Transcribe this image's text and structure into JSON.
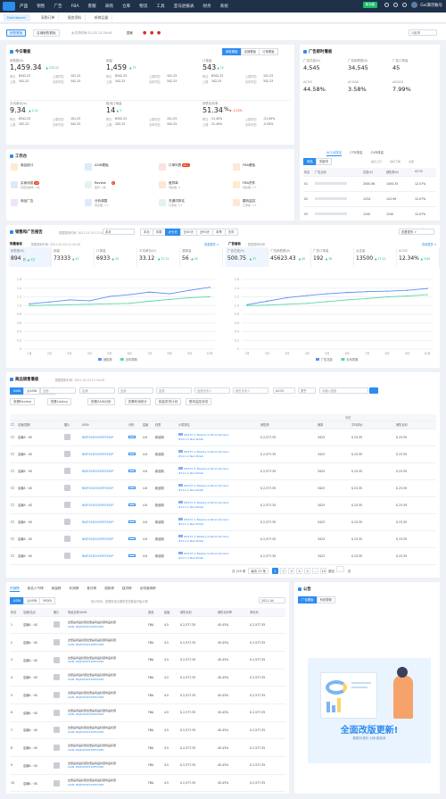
{
  "topnav": {
    "items": [
      "产品",
      "销售",
      "广告",
      "FBA",
      "客服",
      "采购",
      "仓库",
      "物流",
      "工具",
      "亚马逊报表",
      "财务",
      "系统"
    ],
    "trial": "新功能",
    "user": "Gvi演示账号"
  },
  "tabs": [
    "Dashboard",
    "采购订单",
    "服务资料",
    "新商品量"
  ],
  "filters": {
    "btn1": "销售看板",
    "btn2": "店铺销售看板",
    "tz": "太平洋时间 01-03 12:34:45",
    "country": "国家",
    "mode": "人民币"
  },
  "today": {
    "title": "今日看板",
    "switch": [
      "销售看板",
      "店铺看板",
      "订单看板"
    ],
    "kpis": [
      {
        "label": "销售额(¥)",
        "value": "1,459.34",
        "chg": "▲ 133.12",
        "rows": [
          [
            "昨日",
            "8342.23",
            "上周同日",
            "101.23"
          ],
          [
            "上周",
            "342.23",
            "去年同日",
            "342.23"
          ]
        ]
      },
      {
        "label": "销量",
        "value": "1,459",
        "chg": "▲ 73",
        "rows": [
          [
            "昨日",
            "8342.23",
            "上周同日",
            "101.23"
          ],
          [
            "上周",
            "342.23",
            "去年同日",
            "342.23"
          ]
        ]
      },
      {
        "label": "订单量",
        "value": "543",
        "chg": "▲ 12",
        "rows": [
          [
            "昨日",
            "8342.23",
            "上周同日",
            "101.23"
          ],
          [
            "上周",
            "342.23",
            "去年同日",
            "342.23"
          ]
        ]
      },
      {
        "label": "平均单价(¥)",
        "value": "9.34",
        "chg": "▲ 2.12",
        "rows": [
          [
            "昨日",
            "8342.23",
            "上周同日",
            "101.23"
          ],
          [
            "上周",
            "342.23",
            "去年同日",
            "342.23"
          ]
        ]
      },
      {
        "label": "取消订单量",
        "value": "14",
        "chg": "▲ 3",
        "rows": [
          [
            "昨日",
            "8342.23",
            "上周同日",
            "101.23"
          ],
          [
            "上周",
            "342.23",
            "去年同日",
            "342.23"
          ]
        ]
      },
      {
        "label": "销售毛利率",
        "value": "51.34",
        "unit": "%",
        "chg": "▼ -2.23%",
        "rows": [
          [
            "昨日",
            "21.45%",
            "上周同日",
            "-21.45%"
          ],
          [
            "上周",
            "21.45%",
            "去年同日",
            "-0.34%"
          ]
        ]
      }
    ]
  },
  "ads": {
    "title": "广告即时看板",
    "kpis": [
      {
        "label": "广告花费(¥)",
        "value": "4,545"
      },
      {
        "label": "广告销售额(¥)",
        "value": "34,545"
      },
      {
        "label": "广告订单量",
        "value": "45"
      },
      {
        "label": "ACOS",
        "value": "44.58%"
      },
      {
        "label": "ACOAS",
        "value": "3.58%"
      },
      {
        "label": "ASOAS",
        "value": "7.99%"
      }
    ],
    "ranktabs": [
      "ACOS排名",
      "CTR排名",
      "CVR排名"
    ],
    "sub": [
      "商品",
      "关键词"
    ],
    "chips": [
      "指标上升",
      "指标下降",
      "全部"
    ],
    "head": [
      "排名",
      "广告活动",
      "花费(¥)",
      "销售额(¥)",
      "ACOS"
    ],
    "rows": [
      [
        "01",
        "2000.56",
        "1000.33",
        "12.07%"
      ],
      [
        "02",
        "1234",
        "123.99",
        "12.07%"
      ],
      [
        "03",
        "1240",
        "1240",
        "12.07%"
      ],
      [
        "04",
        "1240",
        "1240",
        "12.07%"
      ],
      [
        "05",
        "34",
        "34",
        "12.07%"
      ]
    ],
    "pager": [
      "共 20 条",
      "1",
      "2",
      "3",
      "4",
      "5"
    ]
  },
  "tools": {
    "title": "工作台",
    "items": [
      {
        "name": "商品统计",
        "sub": "",
        "color": "#fdebd0",
        "badge": ""
      },
      {
        "name": "ASIN看板",
        "sub": "",
        "color": "#d6ecfb",
        "badge": ""
      },
      {
        "name": "订单列表",
        "sub": "",
        "color": "#fde2e2",
        "badge": "99+"
      },
      {
        "name": "FBA看板",
        "sub": "",
        "color": "#fde7d6",
        "badge": ""
      },
      {
        "name": "买家消息",
        "sub": "待回复邮件: 1条",
        "color": "#dde9fb",
        "badge": "13"
      },
      {
        "name": "Review",
        "sub": "差评: 1条",
        "color": "#e4f3e9",
        "badge": "5"
      },
      {
        "name": "差异单",
        "sub": "待处理: 0",
        "color": "#fde7d6",
        "badge": ""
      },
      {
        "name": "FBA货件",
        "sub": "待处理: 1个",
        "color": "#fdebd0",
        "badge": ""
      },
      {
        "name": "商品广告",
        "sub": "",
        "color": "#ece4fb",
        "badge": ""
      },
      {
        "name": "分析调整",
        "sub": "待办理: 1个",
        "color": "#dde9fb",
        "badge": ""
      },
      {
        "name": "关键词排名",
        "sub": "已添加: 1个",
        "color": "#e4f3e9",
        "badge": ""
      },
      {
        "name": "翻页监控",
        "sub": "已添加: 1个",
        "color": "#fde7d6",
        "badge": ""
      }
    ]
  },
  "trend": {
    "title": "销售和广告报告",
    "updated": "数据更新时间: 2021-01-03 12:34:45",
    "ranges": [
      "本月",
      "本周",
      "近七天",
      "近30天",
      "近90天",
      "本季",
      "去年",
      "自定义"
    ],
    "subtabs": [
      "近七天",
      "近7天",
      "近30天",
      "本周",
      "本月",
      "自定义"
    ],
    "salesTitle": "销量看板",
    "adsTitle": "广告看板",
    "updSales": "数据更新时间",
    "updAds": "数据更新时间",
    "more": "查看更多 >",
    "sales": [
      {
        "label": "销售额(¥)",
        "value": "894",
        "unit": "万",
        "chg": "▲ 3万"
      },
      {
        "label": "销量",
        "value": "73333",
        "chg": "▲ 45"
      },
      {
        "label": "订单量",
        "value": "6933",
        "chg": "▲ 34"
      },
      {
        "label": "平均单价(¥)",
        "value": "33.12",
        "chg": "▲ 37.12"
      },
      {
        "label": "退款量",
        "value": "56",
        "chg": "▲ 45"
      }
    ],
    "adk": [
      {
        "label": "广告花费(¥)",
        "value": "500.75",
        "chg": "▲ 37"
      },
      {
        "label": "广告销售额(¥)",
        "value": "45623.43",
        "chg": "▲ 40"
      },
      {
        "label": "广告订单量",
        "value": "192",
        "chg": "▲ 36"
      },
      {
        "label": "点击量",
        "value": "13500",
        "chg": "▲ 27.12"
      },
      {
        "label": "ACOS",
        "value": "12.34%",
        "chg": "▲ 3.64"
      }
    ]
  },
  "chart_data": [
    {
      "type": "line",
      "categories": [
        "1月",
        "2月",
        "3月",
        "4月",
        "5月",
        "6月",
        "7月",
        "8月",
        "9月",
        "10月"
      ],
      "ylim": [
        0,
        1.6
      ],
      "yticks": [
        "1.6",
        "1.4",
        "1.2",
        "1.0",
        "0.8",
        "0.6",
        "0.4",
        "0.2",
        "0"
      ],
      "series": [
        {
          "name": "销售额",
          "color": "#5b8ff9",
          "values": [
            1.04,
            1.08,
            1.13,
            1.11,
            1.21,
            1.25,
            1.31,
            1.27,
            1.35,
            1.42
          ]
        },
        {
          "name": "去年同期",
          "color": "#5ad8a6",
          "values": [
            1.0,
            1.01,
            1.02,
            1.03,
            1.04,
            1.05,
            1.1,
            1.14,
            1.18,
            1.2
          ]
        }
      ]
    },
    {
      "type": "line",
      "categories": [
        "1月",
        "2月",
        "3月",
        "4月",
        "5月",
        "6月",
        "7月",
        "8月",
        "9月",
        "10月"
      ],
      "ylim": [
        0,
        1.6
      ],
      "yticks": [
        "1.6",
        "1.4",
        "1.2",
        "1.0",
        "0.8",
        "0.6",
        "0.4",
        "0.2",
        "0"
      ],
      "series": [
        {
          "name": "广告花费",
          "color": "#5b8ff9",
          "values": [
            1.02,
            1.1,
            1.18,
            1.23,
            1.27,
            1.3,
            1.32,
            1.33,
            1.35,
            1.39
          ]
        },
        {
          "name": "去年同期",
          "color": "#5ad8a6",
          "values": [
            1.0,
            1.01,
            1.03,
            1.05,
            1.09,
            1.13,
            1.16,
            1.2,
            1.22,
            1.25
          ]
        }
      ]
    }
  ],
  "products": {
    "title": "商品销售看板",
    "updated": "数据更新时间: 2021-01-03 12:34:45",
    "seg": [
      "ASIN",
      "父ASIN",
      "MSKU"
    ],
    "filters": [
      "全部",
      "店铺",
      "全部",
      "品类",
      "运营负责人",
      "销售负责人",
      "ACOS",
      "关于",
      "请输入搜索"
    ],
    "btns": [
      "查看Review",
      "查看Listing",
      "查看ASIN分析",
      "查看利润统计",
      "批量发货计划",
      "更改监控状态"
    ],
    "head": [
      "店铺/国家",
      "图片",
      "ASIN",
      "分析",
      "星级",
      "标签",
      "小类排名",
      "销售额",
      "销量",
      "平均单价",
      "销售毛利"
    ],
    "group": "今日",
    "rows": [
      [
        "店铺A · US",
        "B0JP34305305P5305P",
        "4.6",
        "新品期",
        "#4472 in Beauty & Personal Care",
        "$ 2,577.35",
        "3423",
        "$ 23.35",
        "$ 23.35"
      ],
      [
        "店铺A · US",
        "B0JP34305305P5305P",
        "4.6",
        "新品期",
        "#4472 in Beauty & Personal Care",
        "$ 2,577.35",
        "3423",
        "$ 23.35",
        "$ 23.35"
      ],
      [
        "店铺A · US",
        "B0JP34305305P5305P",
        "4.6",
        "新品期",
        "#4472 in Beauty & Personal Care",
        "$ 2,577.35",
        "3423",
        "$ 23.35",
        "$ 23.35"
      ],
      [
        "店铺A · US",
        "B0JP34305305P5305P",
        "4.6",
        "新品期",
        "#4472 in Beauty & Personal Care",
        "$ 2,577.35",
        "3423",
        "$ 23.35",
        "$ 23.35"
      ],
      [
        "店铺A · US",
        "B0JP34305305P5305P",
        "4.6",
        "新品期",
        "#4472 in Beauty & Personal Care",
        "$ 2,577.35",
        "3423",
        "$ 23.35",
        "$ 23.35"
      ],
      [
        "店铺A · US",
        "B0JP34305305P5305P",
        "4.6",
        "新品期",
        "#4472 in Beauty & Personal Care",
        "$ 2,577.35",
        "3423",
        "$ 23.35",
        "$ 23.35"
      ],
      [
        "店铺A · US",
        "B0JP34305305P5305P",
        "4.6",
        "新品期",
        "#4472 in Beauty & Personal Care",
        "$ 2,577.35",
        "3423",
        "$ 23.35",
        "$ 23.35"
      ],
      [
        "店铺A · US",
        "B0JP34305305P5305P",
        "4.6",
        "新品期",
        "#4472 in Beauty & Personal Care",
        "$ 2,577.35",
        "3423",
        "$ 23.35",
        "$ 23.35"
      ]
    ],
    "sub2": "#111 in Nail Polish",
    "pager": {
      "total": "共 220 条",
      "size": "每页 20 条",
      "pages": [
        "1",
        "2",
        "3",
        "4",
        "5",
        "...",
        "10"
      ],
      "goto": "跳至",
      "page": "页"
    }
  },
  "ranking": {
    "tabs": [
      "热销榜",
      "新品人气榜",
      "销量榜",
      "利润榜",
      "差评榜",
      "退款榜",
      "缺货榜",
      "全球营销榜"
    ],
    "seg": [
      "ASIN",
      "父ASIN",
      "MSKU"
    ],
    "note": "统计时间，按照所选日期的发货数量开始计算",
    "date": "2021-04",
    "head": [
      "排名",
      "店铺/站点",
      "图片",
      "商品名称/ASIN",
      "渠道",
      "星级",
      "销售毛利",
      "销售毛利率",
      "净毛利"
    ],
    "name": "这里是商品标题这里是商品标题商品标题",
    "asin": "ASIN: B0JP3430530P5305P",
    "rows": [
      [
        "1",
        "店铺A · US",
        "FBA",
        "4.5",
        "$ 2,577.35",
        "45.43%",
        "$ 2,577.35"
      ],
      [
        "2",
        "店铺A · US",
        "FBA",
        "4.5",
        "$ 2,577.35",
        "45.43%",
        "$ 2,577.35"
      ],
      [
        "3",
        "店铺A · US",
        "FBA",
        "4.5",
        "$ 2,577.35",
        "45.43%",
        "$ 2,577.35"
      ],
      [
        "4",
        "店铺A · US",
        "FBA",
        "4.5",
        "$ 2,577.35",
        "45.43%",
        "$ 2,577.35"
      ],
      [
        "5",
        "店铺A · US",
        "FBA",
        "4.5",
        "$ 2,577.35",
        "45.43%",
        "$ 2,577.35"
      ],
      [
        "6",
        "店铺A · US",
        "FBA",
        "4.5",
        "$ 2,577.35",
        "45.43%",
        "$ 2,577.35"
      ],
      [
        "7",
        "店铺A · US",
        "FBA",
        "4.5",
        "$ 2,577.35",
        "45.43%",
        "$ 2,577.35"
      ],
      [
        "8",
        "店铺A · US",
        "FBA",
        "4.5",
        "$ 2,577.35",
        "45.43%",
        "$ 2,577.35"
      ],
      [
        "9",
        "店铺A · US",
        "FBA",
        "4.5",
        "$ 2,577.35",
        "45.43%",
        "$ 2,577.35"
      ],
      [
        "10",
        "店铺A · US",
        "FBA",
        "4.5",
        "$ 2,577.35",
        "45.43%",
        "$ 2,577.35"
      ]
    ]
  },
  "notice": {
    "title": "公告",
    "tabs": [
      "广告看板",
      "系统更新"
    ],
    "banner": "全面改版更新!",
    "banner_sub": "数据可视化·分析更高效"
  }
}
